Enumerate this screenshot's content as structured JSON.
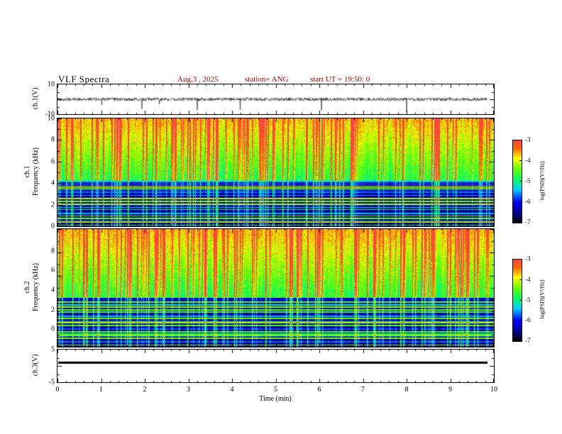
{
  "title": {
    "text": "VLF Spectra",
    "color": "#000000"
  },
  "header": {
    "date": "Aug.3 , 2025",
    "station": "station= ANG",
    "start_ut": "start UT =   19:50: 0",
    "text_color": "#990000"
  },
  "axes": {
    "xlabel": "Time (min)",
    "xticks": [
      "0",
      "1",
      "2",
      "3",
      "4",
      "5",
      "6",
      "7",
      "8",
      "9",
      "10"
    ],
    "xrange_min": [
      0,
      10
    ],
    "data_end_min": 9.83
  },
  "panels": {
    "ch1_wave": {
      "ylabel": "ch.1(V)",
      "yticks": [
        "10",
        "-10"
      ],
      "ylim": [
        -10,
        10
      ]
    },
    "ch1_spec": {
      "ylabel_line1": "ch.1",
      "ylabel_line2": "Frequency (kHz)",
      "yticks": [
        "10",
        "8",
        "6",
        "4",
        "2",
        "0"
      ],
      "ylim_kHz": [
        0,
        10
      ]
    },
    "ch2_spec": {
      "ylabel_line1": "ch.2",
      "ylabel_line2": "Frequency (kHz)",
      "yticks": [
        "8",
        "6",
        "4",
        "2",
        "0"
      ],
      "ylim_kHz": [
        0,
        10
      ]
    },
    "ch3_wave": {
      "ylabel": "ch.3(V)",
      "yticks": [
        "5",
        "-5"
      ],
      "ylim": [
        -5,
        5
      ],
      "line_value": 1.0
    }
  },
  "colorbar": {
    "label": "log(PSD)(V²/Hz)",
    "ticks": [
      "-3",
      "-4",
      "-5",
      "-6",
      "-7"
    ],
    "value_range": [
      -7,
      -3
    ],
    "stops": [
      {
        "t": 0.0,
        "c": "#000000"
      },
      {
        "t": 0.1,
        "c": "#000080"
      },
      {
        "t": 0.25,
        "c": "#0000ff"
      },
      {
        "t": 0.4,
        "c": "#00ccff"
      },
      {
        "t": 0.52,
        "c": "#00ff66"
      },
      {
        "t": 0.65,
        "c": "#66ff00"
      },
      {
        "t": 0.78,
        "c": "#ffff00"
      },
      {
        "t": 0.9,
        "c": "#ff6600"
      },
      {
        "t": 1.0,
        "c": "#ff4444"
      }
    ]
  },
  "chart_data": [
    {
      "type": "line",
      "panel": "ch.1 waveform",
      "ylabel": "ch.1(V)",
      "ylim": [
        -10,
        10
      ],
      "xlim_min": [
        0,
        10
      ],
      "series": [
        {
          "name": "ch.1",
          "description": "dense noisy voltage trace centred on 0 V, typical amplitude about ±1 V, with frequent impulsive spikes reaching roughly -8 to +5 V across the whole 0–9.8 min record"
        }
      ]
    },
    {
      "type": "heatmap",
      "panel": "ch.1 spectrogram",
      "ylabel": "Frequency (kHz)",
      "ylim_kHz": [
        0,
        10
      ],
      "xlim_min": [
        0,
        10
      ],
      "zlabel": "log(PSD)(V²/Hz)",
      "zlim": [
        -7,
        -3
      ],
      "description": "above ~4.3 kHz a yellow/green background near -4.5 to -4 filled with dense vertical broadband sferic streaks reaching -3 (red); below ~4.3 kHz a dark background near -7 (black/dark blue) crossed by many narrowband horizontal lines between -6 and -4.3 (blue/cyan/green) that persist for the whole record"
    },
    {
      "type": "heatmap",
      "panel": "ch.2 spectrogram",
      "ylabel": "Frequency (kHz)",
      "ylim_kHz": [
        0,
        10
      ],
      "xlim_min": [
        0,
        10
      ],
      "zlabel": "log(PSD)(V²/Hz)",
      "zlim": [
        -7,
        -3
      ],
      "description": "same structure as ch.1: vertical red sferic streaks over a yellow/green background above ~4.3 kHz, dark low-frequency region with many persistent narrowband horizontal lines below ~4.3 kHz"
    },
    {
      "type": "line",
      "panel": "ch.3 waveform",
      "ylabel": "ch.3(V)",
      "ylim": [
        -5,
        5
      ],
      "xlim_min": [
        0,
        10
      ],
      "series": [
        {
          "name": "ch.3",
          "description": "flat constant line near +1 V from 0 to ~9.8 min"
        }
      ]
    }
  ]
}
